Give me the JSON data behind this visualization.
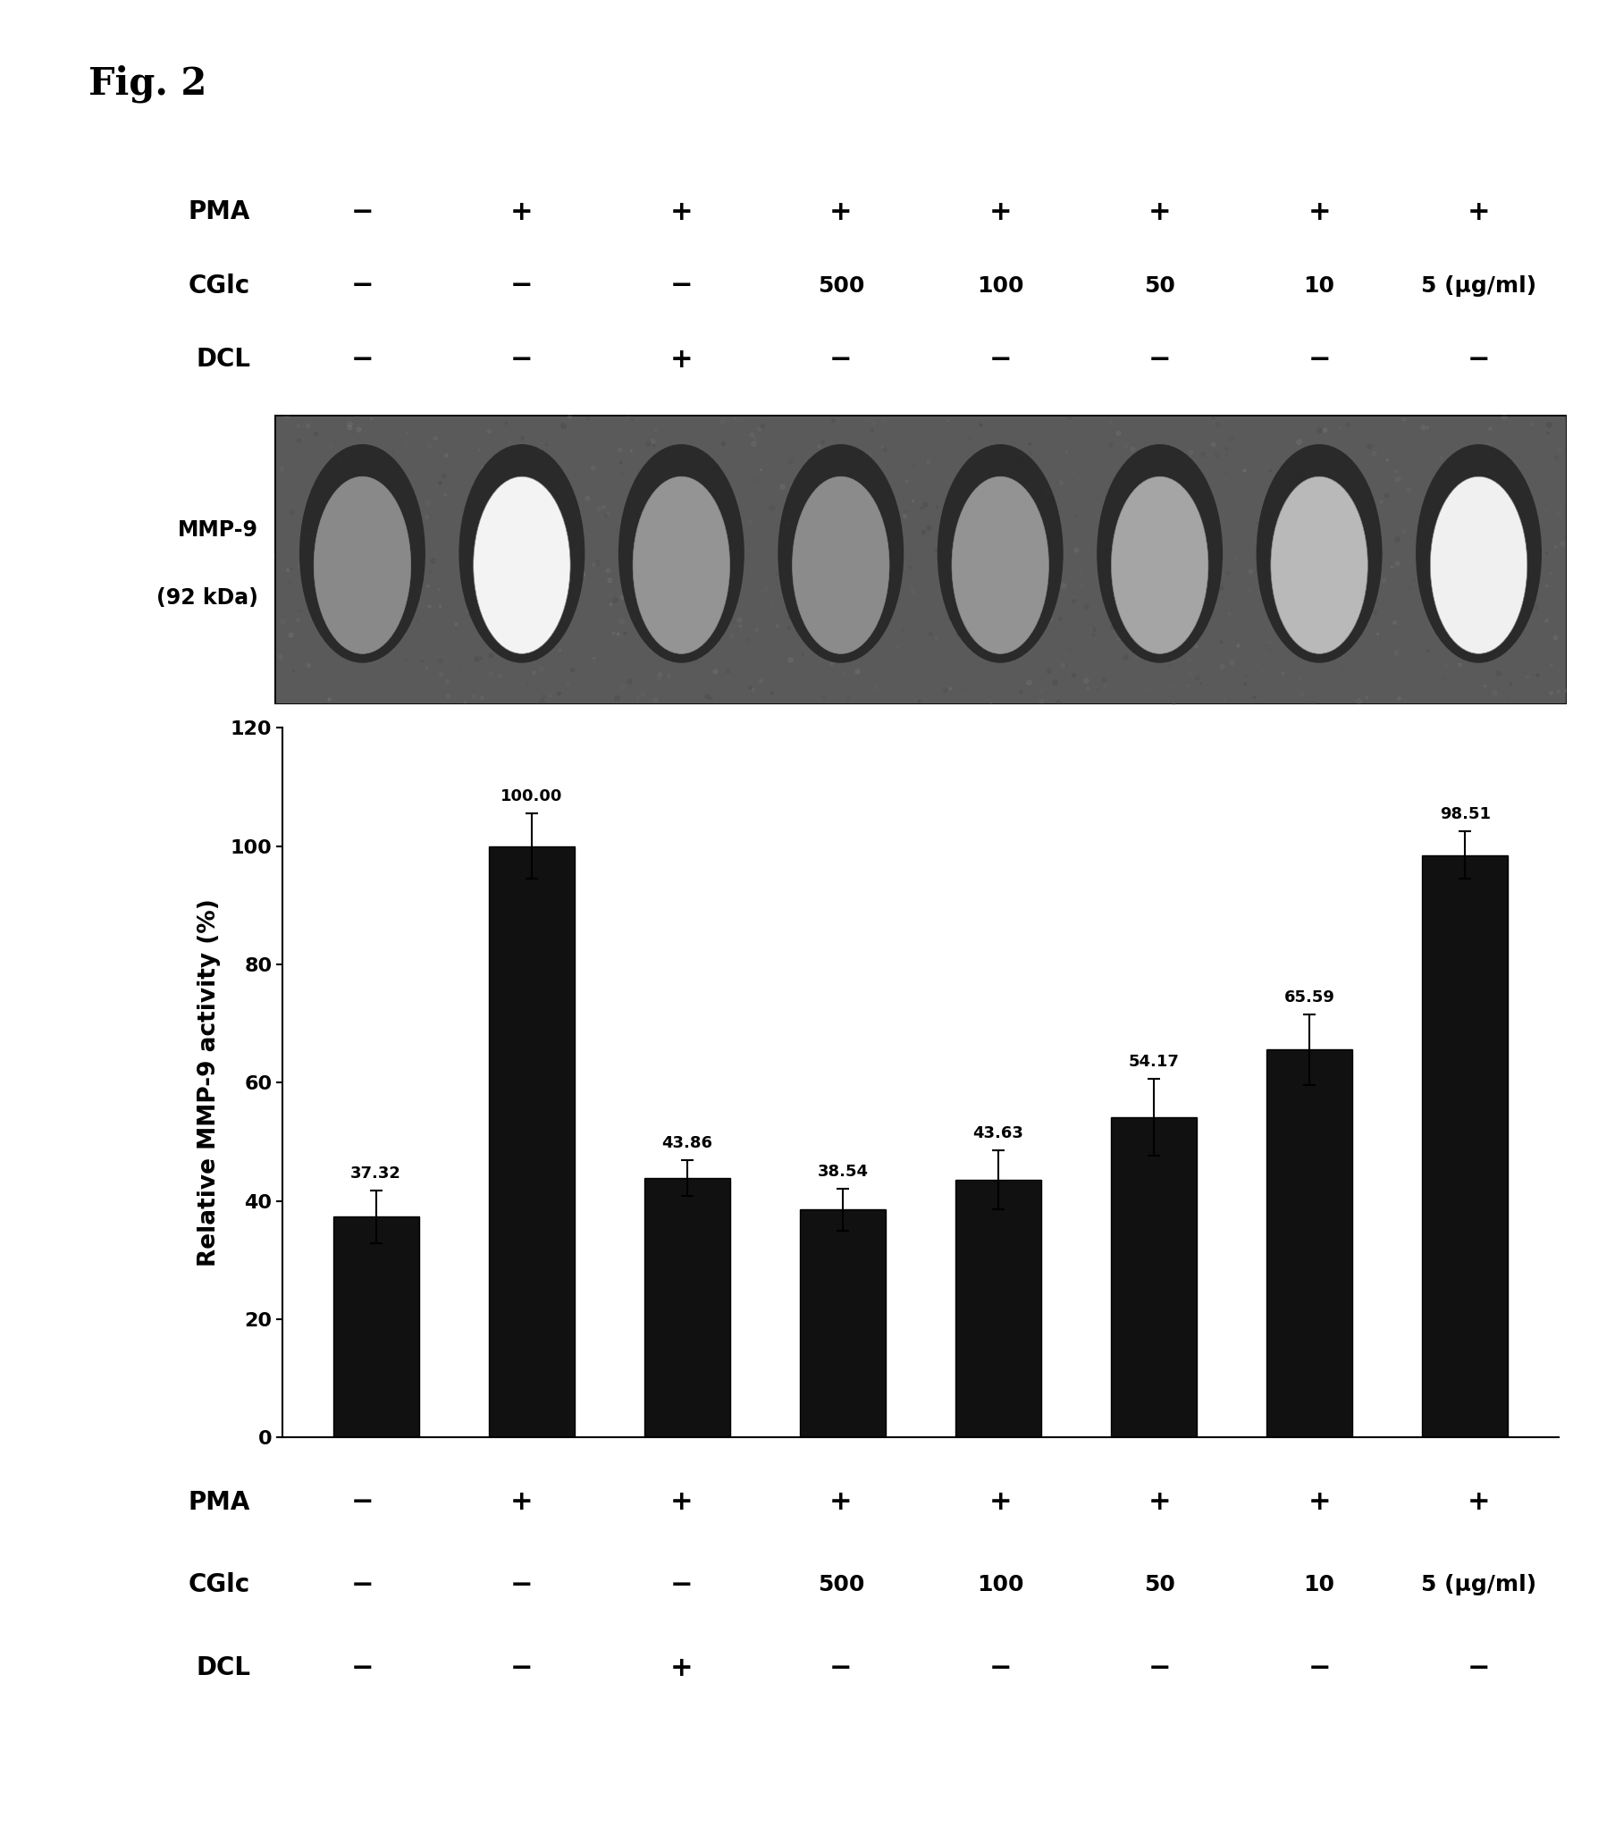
{
  "fig_label": "Fig. 2",
  "bar_values": [
    37.32,
    100.0,
    43.86,
    38.54,
    43.63,
    54.17,
    65.59,
    98.51
  ],
  "bar_errors": [
    4.5,
    5.5,
    3.0,
    3.5,
    5.0,
    6.5,
    6.0,
    4.0
  ],
  "bar_color": "#111111",
  "ylim": [
    0,
    120
  ],
  "yticks": [
    0,
    20,
    40,
    60,
    80,
    100,
    120
  ],
  "ylabel": "Relative MMP-9 activity (%)",
  "bar_width": 0.55,
  "value_labels": [
    "37.32",
    "100.00",
    "43.86",
    "38.54",
    "43.63",
    "54.17",
    "65.59",
    "98.51"
  ],
  "pma_row": [
    "−",
    "+",
    "+",
    "+",
    "+",
    "+",
    "+",
    "+"
  ],
  "cglc_row": [
    "−",
    "−",
    "−",
    "500",
    "100",
    "50",
    "10",
    "5 (μg/ml)"
  ],
  "dcl_row": [
    "−",
    "−",
    "+",
    "−",
    "−",
    "−",
    "−",
    "−"
  ],
  "mmp9_label_line1": "MMP-9",
  "mmp9_label_line2": "(92 kDa)",
  "background_color": "#ffffff"
}
